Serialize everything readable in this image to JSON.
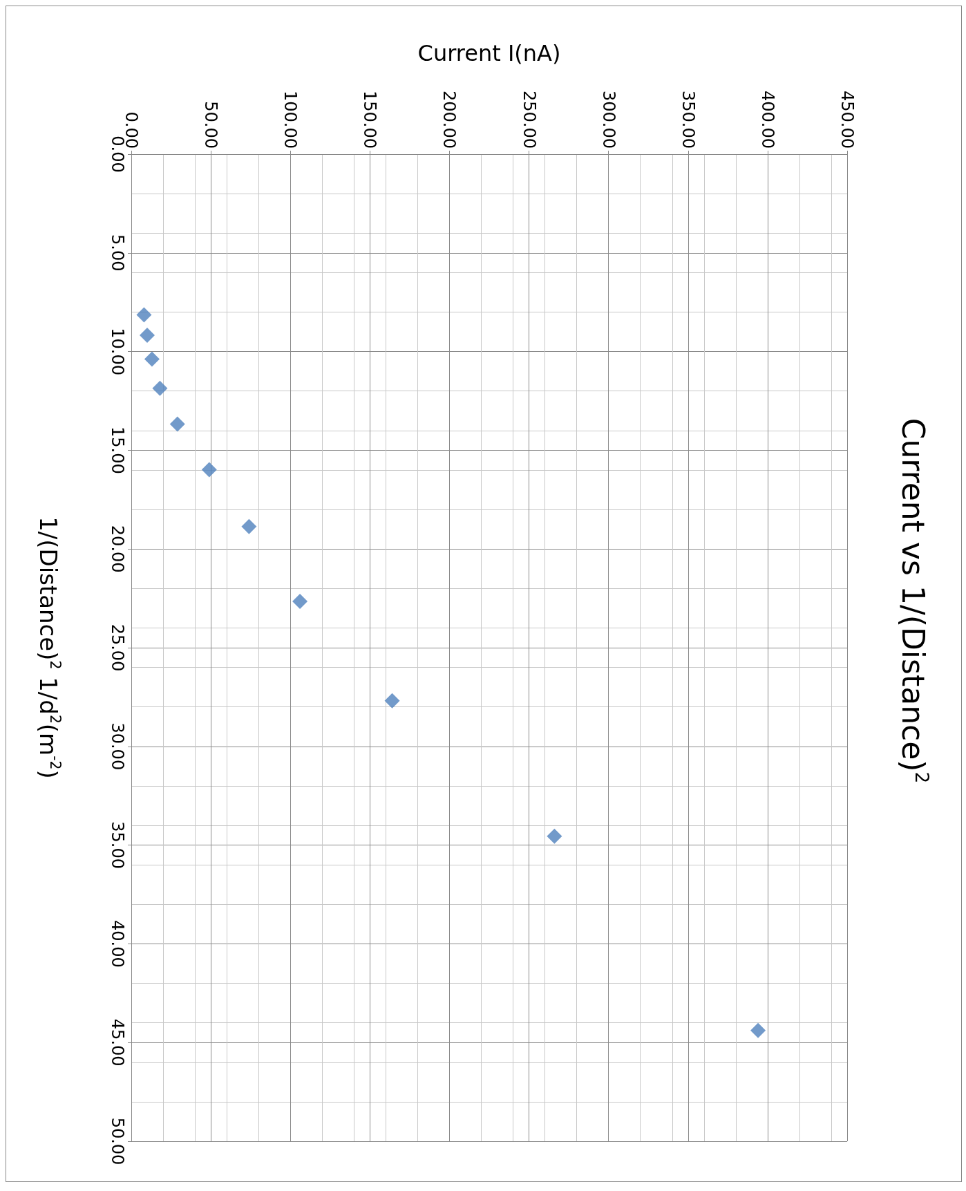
{
  "chart_data": {
    "type": "scatter",
    "title": "Current vs 1/(Distance)$^{2}$",
    "xlabel": "Current I(nA)",
    "ylabel": "1/(Distance)$^{2}$ 1/d$^{2}$(m$^{-2}$)",
    "x": [
      8,
      10,
      13,
      18,
      29,
      49,
      74,
      106,
      164,
      266,
      394
    ],
    "series": [
      {
        "color": "#4f81bd",
        "values": [
          8.14,
          9.17,
          10.38,
          11.86,
          13.67,
          15.98,
          18.86,
          22.65,
          27.69,
          34.55,
          44.39
        ]
      }
    ],
    "xlim": [
      0,
      450
    ],
    "xticks": [
      {
        "value": 0,
        "label": "0.00"
      },
      {
        "value": 50,
        "label": "50.00"
      },
      {
        "value": 100,
        "label": "100.00"
      },
      {
        "value": 150,
        "label": "150.00"
      },
      {
        "value": 200,
        "label": "200.00"
      },
      {
        "value": 250,
        "label": "250.00"
      },
      {
        "value": 300,
        "label": "300.00"
      },
      {
        "value": 350,
        "label": "350.00"
      },
      {
        "value": 400,
        "label": "400.00"
      },
      {
        "value": 450,
        "label": "450.00"
      }
    ],
    "ylim": [
      50,
      0
    ],
    "yticks": [
      {
        "value": 0,
        "label": "0.00"
      },
      {
        "value": 5,
        "label": "5.00"
      },
      {
        "value": 10,
        "label": "10.00"
      },
      {
        "value": 15,
        "label": "15.00"
      },
      {
        "value": 20,
        "label": "20.00"
      },
      {
        "value": 25,
        "label": "25.00"
      },
      {
        "value": 30,
        "label": "30.00"
      },
      {
        "value": 35,
        "label": "35.00"
      },
      {
        "value": 40,
        "label": "40.00"
      },
      {
        "value": 45,
        "label": "45.00"
      },
      {
        "value": 50,
        "label": "50.00"
      }
    ],
    "grid": true,
    "marker": "diamond"
  }
}
